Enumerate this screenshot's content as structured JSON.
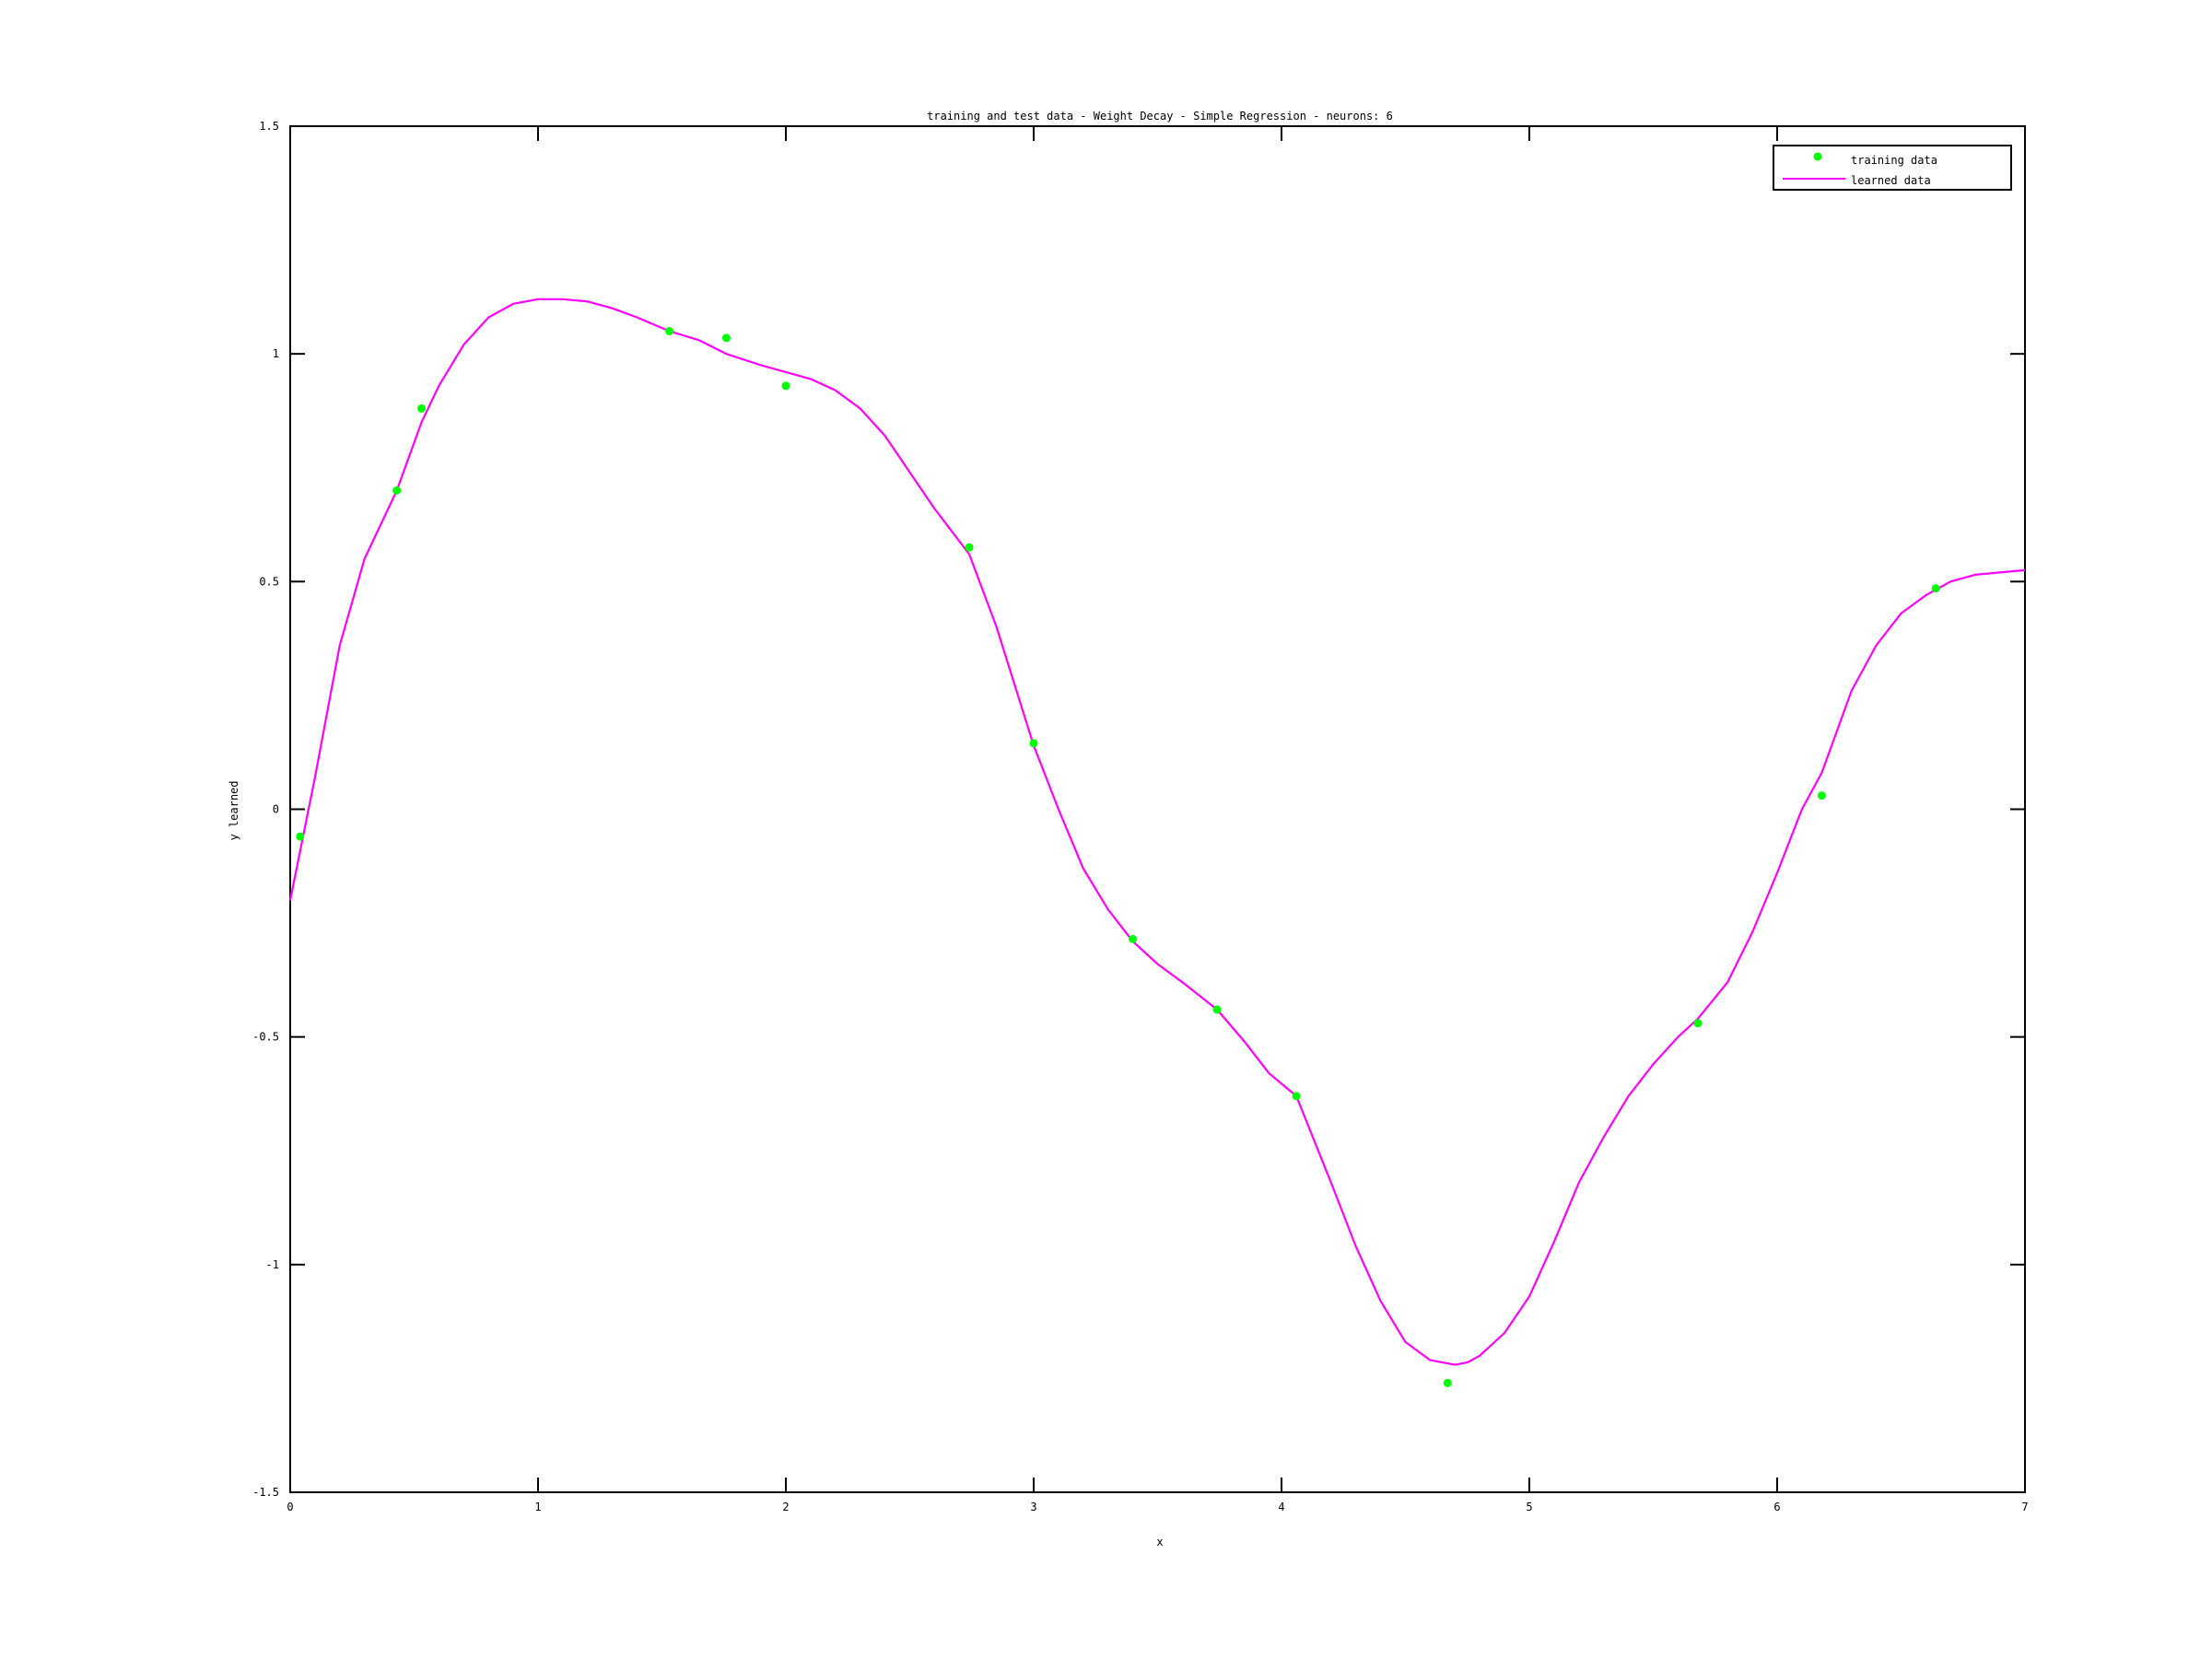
{
  "chart_data": {
    "type": "line",
    "title": "training and test data - Weight Decay - Simple Regression - neurons: 6",
    "xlabel": "x",
    "ylabel": "y learned",
    "xlim": [
      0,
      7
    ],
    "ylim": [
      -1.5,
      1.5
    ],
    "x_ticks": [
      0,
      1,
      2,
      3,
      4,
      5,
      6,
      7
    ],
    "x_tick_labels": [
      "0",
      "1",
      "2",
      "3",
      "4",
      "5",
      "6",
      "7"
    ],
    "y_ticks": [
      1.5,
      1,
      0.5,
      0,
      -0.5,
      -1,
      -1.5
    ],
    "y_tick_labels": [
      "1.5",
      "1",
      "0.5",
      "0",
      "-0.5",
      "-1",
      "-1.5"
    ],
    "grid": false,
    "legend_position": "top-right",
    "series": [
      {
        "name": "training data",
        "type": "scatter",
        "color": "#00ff00",
        "x": [
          0.04,
          0.43,
          0.53,
          1.53,
          1.76,
          2.0,
          2.74,
          3.0,
          3.4,
          3.74,
          4.06,
          4.67,
          5.68,
          6.18,
          6.64
        ],
        "y": [
          -0.06,
          0.7,
          0.88,
          1.05,
          1.035,
          0.93,
          0.575,
          0.145,
          -0.285,
          -0.44,
          -0.63,
          -1.26,
          -0.47,
          0.03,
          0.485
        ]
      },
      {
        "name": "learned data",
        "type": "line",
        "color": "#ff00ff",
        "x": [
          0,
          0.1,
          0.2,
          0.3,
          0.43,
          0.53,
          0.6,
          0.7,
          0.8,
          0.9,
          1.0,
          1.1,
          1.2,
          1.3,
          1.4,
          1.53,
          1.65,
          1.76,
          1.9,
          2.0,
          2.1,
          2.2,
          2.3,
          2.4,
          2.5,
          2.6,
          2.74,
          2.85,
          3.0,
          3.1,
          3.2,
          3.3,
          3.4,
          3.5,
          3.6,
          3.74,
          3.85,
          3.95,
          4.06,
          4.2,
          4.3,
          4.4,
          4.5,
          4.6,
          4.7,
          4.75,
          4.8,
          4.9,
          5.0,
          5.1,
          5.2,
          5.3,
          5.4,
          5.5,
          5.6,
          5.68,
          5.8,
          5.9,
          6.0,
          6.1,
          6.18,
          6.3,
          6.4,
          6.5,
          6.6,
          6.7,
          6.8,
          6.9,
          7.0
        ],
        "y": [
          -0.2,
          0.07,
          0.36,
          0.55,
          0.7,
          0.85,
          0.93,
          1.02,
          1.08,
          1.11,
          1.12,
          1.12,
          1.115,
          1.1,
          1.08,
          1.05,
          1.03,
          1.0,
          0.975,
          0.96,
          0.945,
          0.92,
          0.88,
          0.82,
          0.74,
          0.66,
          0.56,
          0.4,
          0.14,
          0.0,
          -0.13,
          -0.22,
          -0.29,
          -0.34,
          -0.38,
          -0.44,
          -0.51,
          -0.58,
          -0.63,
          -0.82,
          -0.96,
          -1.08,
          -1.17,
          -1.21,
          -1.22,
          -1.215,
          -1.2,
          -1.15,
          -1.07,
          -0.95,
          -0.82,
          -0.72,
          -0.63,
          -0.56,
          -0.5,
          -0.46,
          -0.38,
          -0.27,
          -0.14,
          0.0,
          0.08,
          0.26,
          0.36,
          0.43,
          0.47,
          0.5,
          0.515,
          0.52,
          0.525
        ]
      }
    ]
  }
}
